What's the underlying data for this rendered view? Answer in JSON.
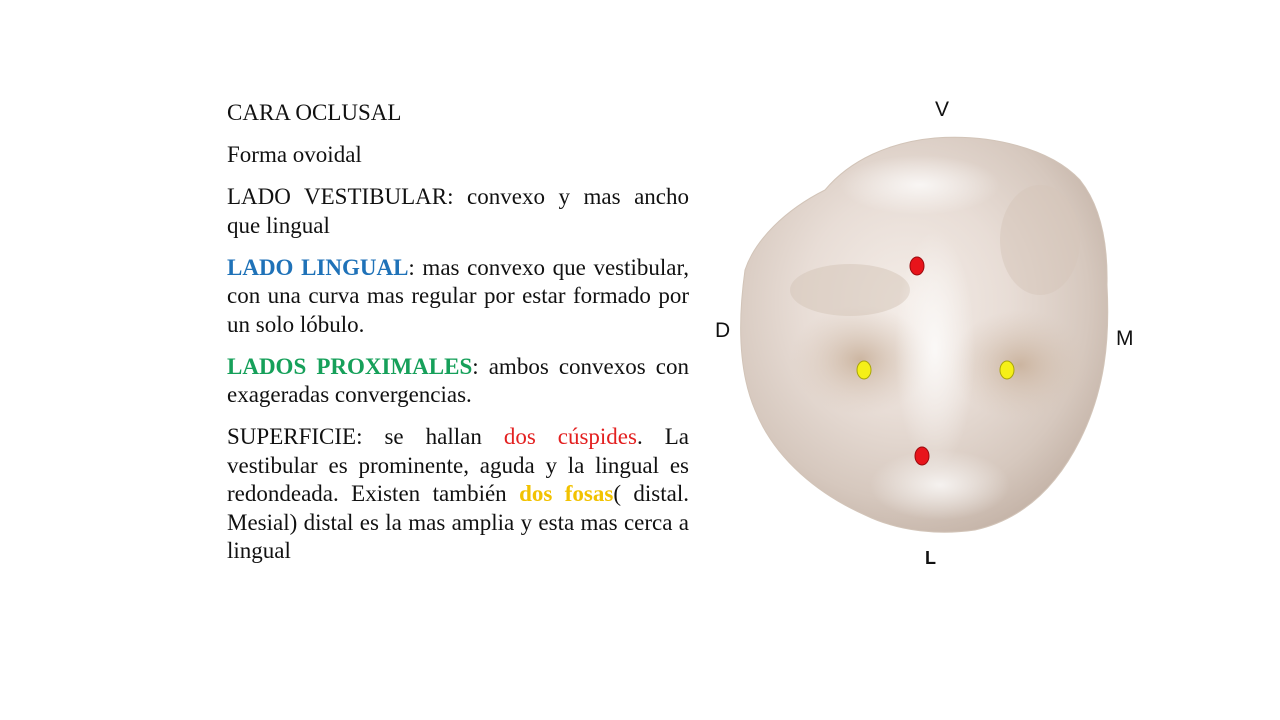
{
  "slide": {
    "heading": "CARA OCLUSAL",
    "forma": "Forma ovoidal",
    "vestibular": {
      "label": "LADO VESTIBULAR",
      "text": ": convexo y mas ancho que lingual"
    },
    "lingual": {
      "label": "LADO LINGUAL",
      "text": ": mas convexo que vestibular, con una curva mas regular por estar formado por un solo lóbulo."
    },
    "proximales": {
      "label_1": "LADOS",
      "label_2": "PROXIMALES",
      "text": ": ambos convexos con exageradas convergencias."
    },
    "superficie": {
      "part_1": "SUPERFICIE: se hallan ",
      "cuspides": "dos cúspides",
      "part_2": ". La vestibular es prominente, aguda y la lingual es redondeada. Existen también ",
      "fosas": "dos fosas",
      "part_3": "( distal. Mesial) distal es la mas amplia y esta mas cerca a lingual"
    }
  },
  "figure": {
    "label_top": "V",
    "label_left": "D",
    "label_right": "M",
    "label_bottom": "L",
    "marker_colors": {
      "cusp": "#e8141b",
      "fossa": "#f5f018"
    }
  },
  "colors": {
    "lingual": "#1f72b8",
    "proximales": "#16a05a",
    "cuspides": "#e32020",
    "fosas": "#f2c200"
  }
}
